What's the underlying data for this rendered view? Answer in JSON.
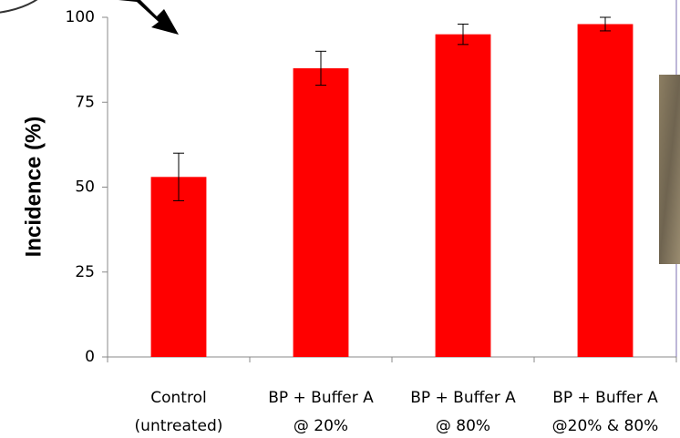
{
  "chart_data": {
    "type": "bar",
    "y_label": "Incidence (%)",
    "categories": [
      [
        "Control",
        "(untreated)"
      ],
      [
        "BP + Buffer A",
        "@ 20%"
      ],
      [
        "BP + Buffer A",
        "@ 80%"
      ],
      [
        "BP + Buffer A",
        "@20% & 80%"
      ]
    ],
    "values": [
      53,
      85,
      95,
      98
    ],
    "errors": [
      7,
      5,
      3,
      2
    ],
    "color": "#ff0000",
    "ylim": [
      0,
      100
    ],
    "yticks": [
      0,
      25,
      50,
      75,
      100
    ]
  }
}
